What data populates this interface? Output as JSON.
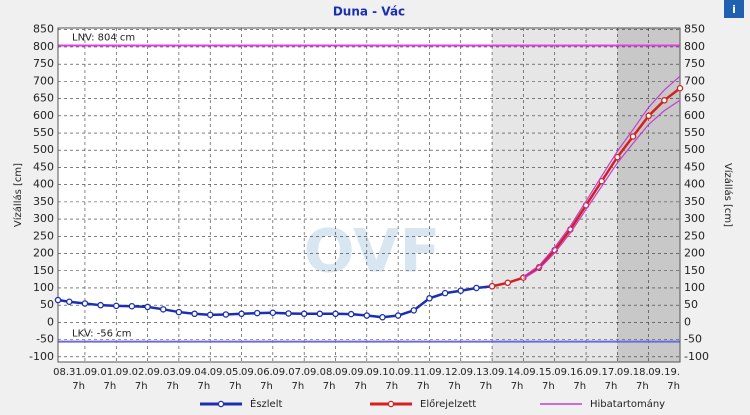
{
  "chart_data": {
    "type": "line",
    "title": "Duna - Vác",
    "ylabel": "Vízállás [cm]",
    "watermark": "OVF",
    "info_icon": "i",
    "xlim": [
      -0.86,
      19
    ],
    "ylim": [
      -115,
      855
    ],
    "xticks": [
      {
        "value": 0,
        "label": "08.31."
      },
      {
        "value": 1,
        "label": "09.01."
      },
      {
        "value": 2,
        "label": "09.02."
      },
      {
        "value": 3,
        "label": "09.03."
      },
      {
        "value": 4,
        "label": "09.04."
      },
      {
        "value": 5,
        "label": "09.05."
      },
      {
        "value": 6,
        "label": "09.06."
      },
      {
        "value": 7,
        "label": "09.07."
      },
      {
        "value": 8,
        "label": "09.08."
      },
      {
        "value": 9,
        "label": "09.09."
      },
      {
        "value": 10,
        "label": "09.10."
      },
      {
        "value": 11,
        "label": "09.11."
      },
      {
        "value": 12,
        "label": "09.12."
      },
      {
        "value": 13,
        "label": "09.13."
      },
      {
        "value": 14,
        "label": "09.14."
      },
      {
        "value": 15,
        "label": "09.15."
      },
      {
        "value": 16,
        "label": "09.16."
      },
      {
        "value": 17,
        "label": "09.17."
      },
      {
        "value": 18,
        "label": "09.18."
      },
      {
        "value": 19,
        "label": "09.19."
      }
    ],
    "xtick_hour": "7h",
    "yticks": [
      -100,
      -50,
      0,
      50,
      100,
      150,
      200,
      250,
      300,
      350,
      400,
      450,
      500,
      550,
      600,
      650,
      700,
      750,
      800,
      850
    ],
    "grid": true,
    "bands": [
      {
        "from": 13,
        "to": 19,
        "color": "#e6e6e6"
      },
      {
        "from": 17,
        "to": 19,
        "color": "#c8c8c8"
      }
    ],
    "hlines": [
      {
        "value": 804,
        "label": "LNV: 804 cm",
        "color": "#e040e0"
      },
      {
        "value": -56,
        "label": "LKV: -56 cm",
        "color": "#6a6ae8"
      }
    ],
    "series": [
      {
        "name": "Észlelt",
        "color": "#1b2fb0",
        "x": [
          -0.86,
          -0.5,
          0,
          0.5,
          1,
          1.5,
          2,
          2.5,
          3,
          3.5,
          4,
          4.5,
          5,
          5.5,
          6,
          6.5,
          7,
          7.5,
          8,
          8.5,
          9,
          9.5,
          10,
          10.5,
          11,
          11.5,
          12,
          12.5,
          13
        ],
        "values": [
          65,
          60,
          55,
          50,
          48,
          47,
          45,
          38,
          30,
          25,
          22,
          23,
          25,
          27,
          28,
          26,
          25,
          25,
          25,
          24,
          20,
          15,
          20,
          35,
          70,
          85,
          92,
          100,
          105
        ]
      },
      {
        "name": "Előrejelzett",
        "color": "#d42020",
        "x": [
          13,
          13.5,
          14,
          14.5,
          15,
          15.5,
          16,
          16.5,
          17,
          17.5,
          18,
          18.5,
          19
        ],
        "values": [
          105,
          115,
          130,
          160,
          210,
          270,
          340,
          410,
          480,
          540,
          600,
          645,
          680
        ]
      },
      {
        "name": "Hibatartomány",
        "color": "#c040d0",
        "x": [
          14,
          14.5,
          15,
          15.5,
          16,
          16.5,
          17,
          17.5,
          18,
          18.5,
          19
        ],
        "upper": [
          133,
          165,
          218,
          280,
          352,
          425,
          497,
          560,
          625,
          675,
          715
        ],
        "lower": [
          127,
          155,
          202,
          260,
          328,
          395,
          463,
          520,
          575,
          615,
          645
        ]
      }
    ]
  }
}
